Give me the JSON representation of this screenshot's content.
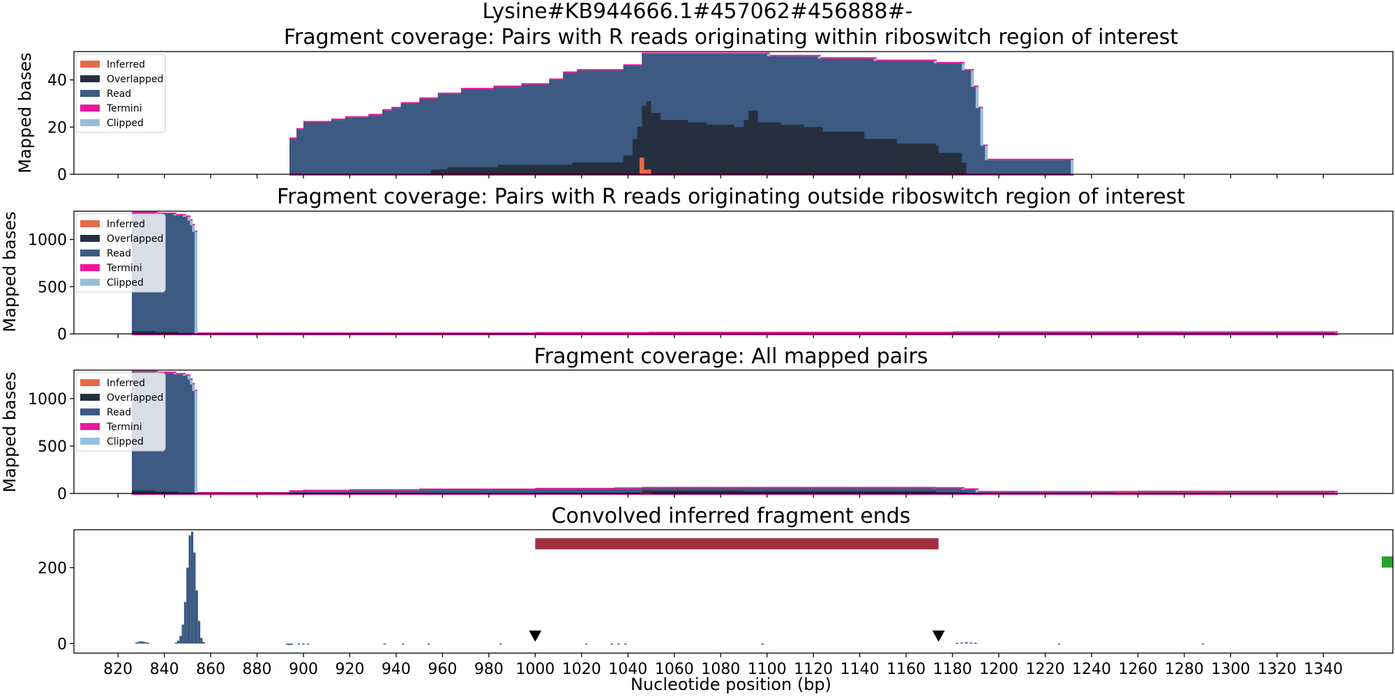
{
  "figure": {
    "suptitle": "Lysine#KB944666.1#457062#456888#-",
    "xlabel": "Nucleotide position (bp)",
    "x_ticks": [
      820,
      840,
      860,
      880,
      900,
      920,
      940,
      960,
      980,
      1000,
      1020,
      1040,
      1060,
      1080,
      1100,
      1120,
      1140,
      1160,
      1180,
      1200,
      1220,
      1240,
      1260,
      1280,
      1300,
      1320,
      1340
    ],
    "xlim": [
      801,
      1370
    ]
  },
  "legend": {
    "entries": [
      {
        "label": "Inferred",
        "color": "#e8694a"
      },
      {
        "label": "Overlapped",
        "color": "#262f3e"
      },
      {
        "label": "Read",
        "color": "#3c5a82"
      },
      {
        "label": "Termini",
        "color": "#f0169d"
      },
      {
        "label": "Clipped",
        "color": "#96bfdb"
      }
    ]
  },
  "colors": {
    "inferred": "#e8694a",
    "overlapped": "#262f3e",
    "read": "#3c5a82",
    "termini": "#f0169d",
    "clipped": "#96bfdb",
    "region_bar": "#a33040",
    "marker": "#000000",
    "end_marker": "#2ca02c"
  },
  "chart_data": [
    {
      "type": "area",
      "title": "Fragment coverage: Pairs with R reads originating within riboswitch region of interest",
      "xlabel": "",
      "ylabel": "Mapped bases",
      "ylim": [
        0,
        52
      ],
      "y_ticks": [
        0,
        20,
        40
      ],
      "legend_position": "top-left",
      "series": [
        {
          "name": "Read",
          "points": [
            [
              894,
              15
            ],
            [
              897,
              19
            ],
            [
              900,
              22
            ],
            [
              912,
              23
            ],
            [
              918,
              24
            ],
            [
              928,
              25
            ],
            [
              934,
              27
            ],
            [
              938,
              28
            ],
            [
              942,
              30
            ],
            [
              950,
              32
            ],
            [
              958,
              34
            ],
            [
              968,
              36
            ],
            [
              982,
              37
            ],
            [
              994,
              38
            ],
            [
              1006,
              40
            ],
            [
              1012,
              43
            ],
            [
              1018,
              44
            ],
            [
              1038,
              46
            ],
            [
              1046,
              51
            ],
            [
              1100,
              50
            ],
            [
              1122,
              49
            ],
            [
              1146,
              48
            ],
            [
              1172,
              47
            ],
            [
              1184,
              44
            ],
            [
              1188,
              37
            ],
            [
              1190,
              28
            ],
            [
              1192,
              12
            ],
            [
              1194,
              6
            ],
            [
              1231,
              0
            ]
          ]
        },
        {
          "name": "Overlapped",
          "points": [
            [
              955,
              2
            ],
            [
              962,
              3
            ],
            [
              984,
              4
            ],
            [
              1016,
              5
            ],
            [
              1038,
              8
            ],
            [
              1042,
              15
            ],
            [
              1044,
              20
            ],
            [
              1046,
              29
            ],
            [
              1048,
              31
            ],
            [
              1050,
              26
            ],
            [
              1054,
              23
            ],
            [
              1066,
              22
            ],
            [
              1074,
              21
            ],
            [
              1086,
              20
            ],
            [
              1090,
              23
            ],
            [
              1092,
              27
            ],
            [
              1096,
              22
            ],
            [
              1106,
              21
            ],
            [
              1116,
              20
            ],
            [
              1124,
              18
            ],
            [
              1142,
              15
            ],
            [
              1156,
              13
            ],
            [
              1173,
              12
            ],
            [
              1174,
              9
            ],
            [
              1184,
              5
            ],
            [
              1186,
              0
            ]
          ]
        },
        {
          "name": "Inferred",
          "points": [
            [
              1045,
              7
            ],
            [
              1047,
              2
            ],
            [
              1050,
              0
            ]
          ]
        }
      ]
    },
    {
      "type": "area",
      "title": "Fragment coverage: Pairs with R reads originating outside riboswitch region of interest",
      "xlabel": "",
      "ylabel": "Mapped bases",
      "ylim": [
        0,
        1300
      ],
      "y_ticks": [
        0,
        500,
        1000
      ],
      "legend_position": "top-left",
      "series": [
        {
          "name": "Read",
          "points": [
            [
              826,
              1280
            ],
            [
              836,
              1270
            ],
            [
              844,
              1255
            ],
            [
              848,
              1240
            ],
            [
              850,
              1200
            ],
            [
              851,
              1150
            ],
            [
              852,
              1080
            ],
            [
              853,
              0
            ],
            [
              1000,
              5
            ],
            [
              1049,
              8
            ],
            [
              1180,
              12
            ],
            [
              1345,
              0
            ]
          ]
        },
        {
          "name": "Overlapped",
          "points": [
            [
              826,
              30
            ],
            [
              836,
              20
            ],
            [
              846,
              10
            ],
            [
              853,
              0
            ]
          ]
        },
        {
          "name": "Inferred",
          "points": [
            [
              1180,
              3
            ],
            [
              1345,
              0
            ]
          ]
        }
      ]
    },
    {
      "type": "area",
      "title": "Fragment coverage: All mapped pairs",
      "xlabel": "",
      "ylabel": "Mapped bases",
      "ylim": [
        0,
        1300
      ],
      "y_ticks": [
        0,
        500,
        1000
      ],
      "legend_position": "top-left",
      "series": [
        {
          "name": "Read",
          "points": [
            [
              826,
              1280
            ],
            [
              836,
              1270
            ],
            [
              844,
              1255
            ],
            [
              848,
              1240
            ],
            [
              850,
              1200
            ],
            [
              851,
              1150
            ],
            [
              852,
              1080
            ],
            [
              853,
              0
            ],
            [
              894,
              20
            ],
            [
              900,
              25
            ],
            [
              920,
              30
            ],
            [
              950,
              38
            ],
            [
              1000,
              45
            ],
            [
              1034,
              50
            ],
            [
              1046,
              55
            ],
            [
              1172,
              52
            ],
            [
              1184,
              40
            ],
            [
              1190,
              12
            ],
            [
              1260,
              15
            ],
            [
              1345,
              0
            ]
          ]
        },
        {
          "name": "Overlapped",
          "points": [
            [
              826,
              30
            ],
            [
              836,
              20
            ],
            [
              846,
              10
            ],
            [
              853,
              0
            ],
            [
              955,
              3
            ],
            [
              1038,
              10
            ],
            [
              1046,
              30
            ],
            [
              1090,
              25
            ],
            [
              1173,
              12
            ],
            [
              1186,
              0
            ]
          ]
        },
        {
          "name": "Inferred",
          "points": [
            [
              1045,
              8
            ],
            [
              1050,
              0
            ],
            [
              1250,
              10
            ],
            [
              1345,
              0
            ]
          ]
        }
      ]
    },
    {
      "type": "bar",
      "title": "Convolved inferred fragment ends",
      "xlabel": "Nucleotide position (bp)",
      "ylabel": "",
      "ylim": [
        -25,
        300
      ],
      "y_ticks": [
        0,
        200
      ],
      "bars": [
        {
          "x": 828,
          "y": 3
        },
        {
          "x": 829,
          "y": 5
        },
        {
          "x": 830,
          "y": 6
        },
        {
          "x": 831,
          "y": 5
        },
        {
          "x": 832,
          "y": 4
        },
        {
          "x": 833,
          "y": 2
        },
        {
          "x": 845,
          "y": 3
        },
        {
          "x": 846,
          "y": 8
        },
        {
          "x": 847,
          "y": 20
        },
        {
          "x": 848,
          "y": 50
        },
        {
          "x": 849,
          "y": 110
        },
        {
          "x": 850,
          "y": 200
        },
        {
          "x": 851,
          "y": 285
        },
        {
          "x": 852,
          "y": 295
        },
        {
          "x": 853,
          "y": 240
        },
        {
          "x": 854,
          "y": 140
        },
        {
          "x": 855,
          "y": 60
        },
        {
          "x": 856,
          "y": 15
        },
        {
          "x": 857,
          "y": 4
        },
        {
          "x": 893,
          "y": -3
        },
        {
          "x": 894,
          "y": -4
        },
        {
          "x": 895,
          "y": -3
        },
        {
          "x": 898,
          "y": -2
        },
        {
          "x": 900,
          "y": -2
        },
        {
          "x": 902,
          "y": -2
        },
        {
          "x": 935,
          "y": -2
        },
        {
          "x": 943,
          "y": -2
        },
        {
          "x": 954,
          "y": -2
        },
        {
          "x": 985,
          "y": -2
        },
        {
          "x": 1022,
          "y": -2
        },
        {
          "x": 1033,
          "y": -2
        },
        {
          "x": 1036,
          "y": -2
        },
        {
          "x": 1039,
          "y": -2
        },
        {
          "x": 1098,
          "y": -3
        },
        {
          "x": 1182,
          "y": 2
        },
        {
          "x": 1184,
          "y": 3
        },
        {
          "x": 1186,
          "y": 4
        },
        {
          "x": 1188,
          "y": 3
        },
        {
          "x": 1190,
          "y": 2
        },
        {
          "x": 1226,
          "y": -2
        },
        {
          "x": 1288,
          "y": -2
        }
      ],
      "region": {
        "x_start": 1000,
        "x_end": 1174,
        "y": 263
      },
      "markers": [
        {
          "x": 1000,
          "y": 5
        },
        {
          "x": 1174,
          "y": 5
        }
      ],
      "end_marker": {
        "x": 1370,
        "y": 215
      }
    }
  ]
}
